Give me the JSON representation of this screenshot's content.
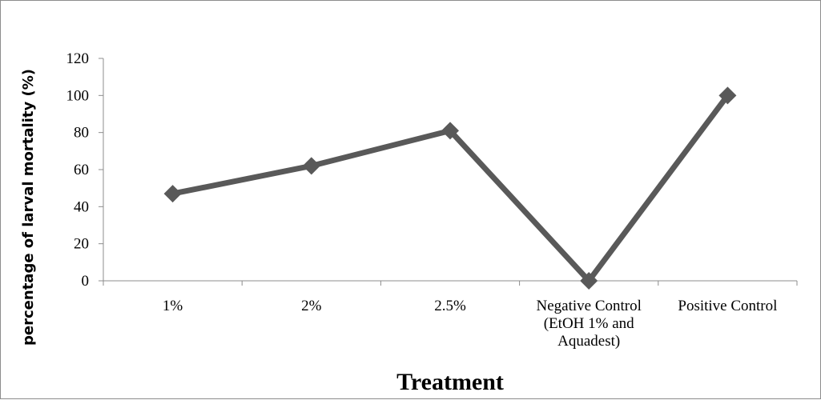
{
  "chart_data": {
    "type": "line",
    "title": "",
    "xlabel": "Treatment",
    "ylabel": "percentage of larval mortality (%)",
    "categories": [
      [
        "1%"
      ],
      [
        "2%"
      ],
      [
        "2.5%"
      ],
      [
        "Negative Control",
        "(EtOH 1% and",
        "Aquadest)"
      ],
      [
        "Positive Control"
      ]
    ],
    "series": [
      {
        "values": [
          47,
          62,
          81,
          0,
          100
        ]
      }
    ],
    "ylim": [
      0,
      120
    ],
    "yticks": [
      0,
      20,
      40,
      60,
      80,
      100,
      120
    ],
    "grid": false,
    "legend": "none",
    "colors": {
      "line": "#595959",
      "marker": "#595959",
      "axis": "#8c8c8c"
    }
  }
}
